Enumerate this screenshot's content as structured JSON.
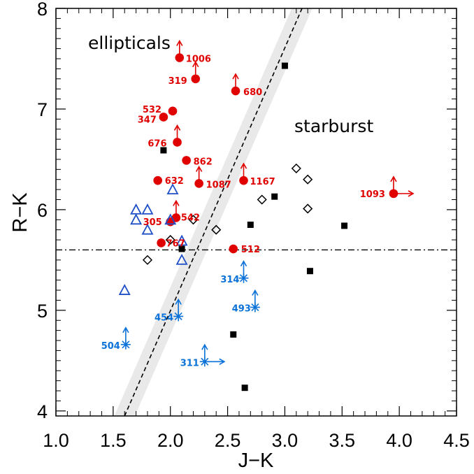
{
  "chart_data": {
    "type": "scatter",
    "title": "",
    "xlabel": "J−K",
    "ylabel": "R−K",
    "xlim": [
      1.0,
      4.5
    ],
    "ylim": [
      3.95,
      8.0
    ],
    "xticks": [
      "1.0",
      "1.5",
      "2.0",
      "2.5",
      "3.0",
      "3.5",
      "4.0",
      "4.5"
    ],
    "yticks": [
      "4",
      "5",
      "6",
      "7",
      "8"
    ],
    "colors": {
      "red": "#e00000",
      "blue": "#0a72d8",
      "navy": "#1f50c8",
      "black": "#000000",
      "band": "#e9e9ea"
    },
    "annotations": {
      "ellipticals": "ellipticals",
      "starburst": "starburst"
    },
    "divider": {
      "type": "dashed",
      "x0": 1.6,
      "y0": 3.95,
      "x1": 3.15,
      "y1": 8.0,
      "band_halfwidth": 0.09
    },
    "hline": {
      "type": "dash-dot",
      "y": 5.6
    },
    "series": [
      {
        "name": "red filled circles (labeled)",
        "marker": "circle",
        "color": "red",
        "points": [
          {
            "x": 2.08,
            "y": 7.51,
            "label": "1006",
            "up": true
          },
          {
            "x": 2.22,
            "y": 7.3,
            "label": "319",
            "up": true
          },
          {
            "x": 2.57,
            "y": 7.18,
            "label": "680",
            "up": true
          },
          {
            "x": 2.02,
            "y": 6.98,
            "label": "532"
          },
          {
            "x": 1.94,
            "y": 6.92,
            "label": "347"
          },
          {
            "x": 2.06,
            "y": 6.67,
            "label": "676",
            "up": true
          },
          {
            "x": 2.14,
            "y": 6.49,
            "label": "862"
          },
          {
            "x": 1.89,
            "y": 6.29,
            "label": "632"
          },
          {
            "x": 2.25,
            "y": 6.26,
            "label": "1087",
            "up": true
          },
          {
            "x": 2.64,
            "y": 6.29,
            "label": "1167",
            "up": true
          },
          {
            "x": 3.95,
            "y": 6.16,
            "label": "1093",
            "up": true,
            "right": true
          },
          {
            "x": 2.05,
            "y": 5.92,
            "label": "542",
            "up": true
          },
          {
            "x": 2.0,
            "y": 5.88,
            "label": "305"
          },
          {
            "x": 1.92,
            "y": 5.67,
            "label": "767"
          },
          {
            "x": 2.55,
            "y": 5.61,
            "label": "512"
          }
        ]
      },
      {
        "name": "blue asterisks (labeled, lower limits)",
        "marker": "asterisk",
        "color": "blue",
        "points": [
          {
            "x": 2.64,
            "y": 5.32,
            "label": "314",
            "up": true
          },
          {
            "x": 2.74,
            "y": 5.03,
            "label": "493",
            "up": true
          },
          {
            "x": 2.07,
            "y": 4.94,
            "label": "454",
            "up": true
          },
          {
            "x": 1.61,
            "y": 4.66,
            "label": "504",
            "up": true
          },
          {
            "x": 2.3,
            "y": 4.49,
            "label": "311",
            "up": true,
            "right": true
          }
        ]
      },
      {
        "name": "blue open triangles",
        "marker": "triangle",
        "color": "navy",
        "points": [
          {
            "x": 2.02,
            "y": 6.2
          },
          {
            "x": 1.7,
            "y": 6.0
          },
          {
            "x": 1.8,
            "y": 6.0
          },
          {
            "x": 1.7,
            "y": 5.9
          },
          {
            "x": 2.0,
            "y": 5.9
          },
          {
            "x": 1.8,
            "y": 5.8
          },
          {
            "x": 2.1,
            "y": 5.69
          },
          {
            "x": 2.1,
            "y": 5.5
          },
          {
            "x": 1.6,
            "y": 5.2
          }
        ]
      },
      {
        "name": "black open diamonds",
        "marker": "diamond",
        "color": "black",
        "points": [
          {
            "x": 3.1,
            "y": 6.41
          },
          {
            "x": 3.2,
            "y": 6.3
          },
          {
            "x": 2.8,
            "y": 6.1
          },
          {
            "x": 3.2,
            "y": 6.01
          },
          {
            "x": 2.2,
            "y": 5.9
          },
          {
            "x": 2.4,
            "y": 5.8
          },
          {
            "x": 2.0,
            "y": 5.7
          },
          {
            "x": 1.8,
            "y": 5.5
          }
        ]
      },
      {
        "name": "black filled squares",
        "marker": "square",
        "color": "black",
        "points": [
          {
            "x": 3.0,
            "y": 7.43
          },
          {
            "x": 1.94,
            "y": 6.59
          },
          {
            "x": 2.91,
            "y": 6.13
          },
          {
            "x": 2.7,
            "y": 5.85
          },
          {
            "x": 3.52,
            "y": 5.84
          },
          {
            "x": 2.1,
            "y": 5.61
          },
          {
            "x": 3.22,
            "y": 5.39
          },
          {
            "x": 2.55,
            "y": 4.76
          },
          {
            "x": 2.65,
            "y": 4.23
          }
        ]
      }
    ]
  }
}
